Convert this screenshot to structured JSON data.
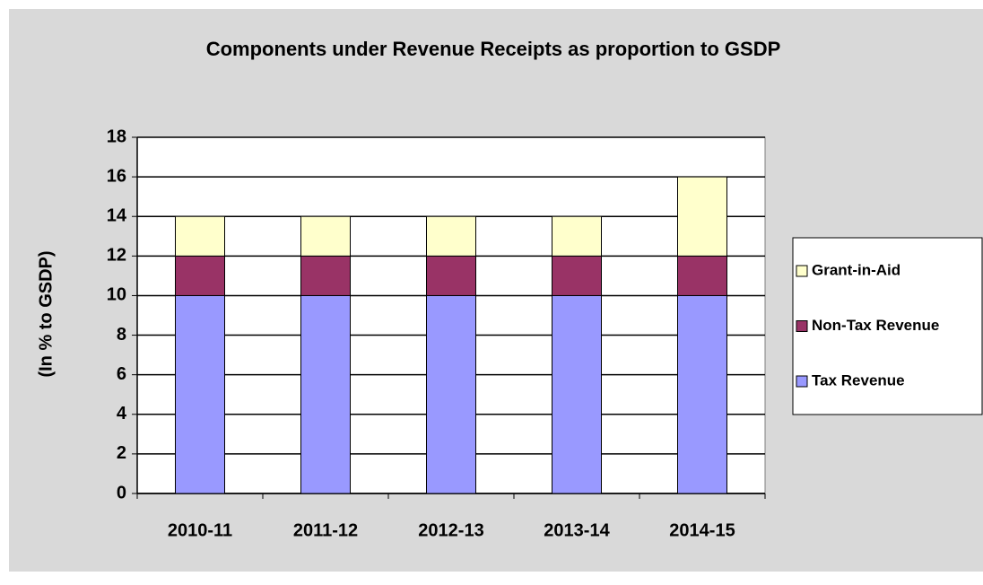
{
  "chart_data": {
    "type": "stacked_bar",
    "title": "Components under Revenue Receipts as proportion to GSDP",
    "y_label": "(In % to GSDP)",
    "categories": [
      "2010-11",
      "2011-12",
      "2012-13",
      "2013-14",
      "2014-15"
    ],
    "series": [
      {
        "name": "Tax Revenue",
        "color": "#9999ff",
        "values": [
          10,
          10,
          10,
          10,
          10
        ]
      },
      {
        "name": "Non-Tax Revenue",
        "color": "#993366",
        "values": [
          2,
          2,
          2,
          2,
          2
        ]
      },
      {
        "name": "Grant-in-Aid",
        "color": "#ffffcc",
        "values": [
          2,
          2,
          2,
          2,
          4
        ]
      }
    ],
    "ylim": [
      0,
      18
    ],
    "yticks": [
      0,
      2,
      4,
      6,
      8,
      10,
      12,
      14,
      16,
      18
    ],
    "grid": true,
    "legend": "right"
  }
}
